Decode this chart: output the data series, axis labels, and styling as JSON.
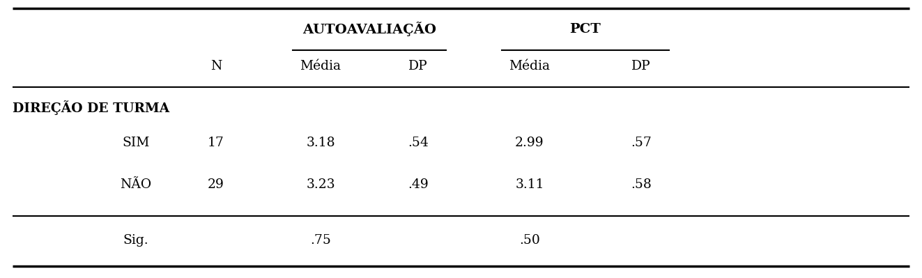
{
  "group_label": "DIREÇÃO DE TURMA",
  "header_auto": "AUTOAVALIAÇÃO",
  "header_pct": "PCT",
  "subheaders": [
    "N",
    "Média",
    "DP",
    "Média",
    "DP"
  ],
  "rows": [
    [
      "SIM",
      "17",
      "3.18",
      ".54",
      "2.99",
      ".57"
    ],
    [
      "NÃO",
      "29",
      "3.23",
      ".49",
      "3.11",
      ".58"
    ]
  ],
  "sig_row": [
    "Sig.",
    ".75",
    ".50"
  ],
  "background_color": "#ffffff",
  "text_color": "#000000",
  "font_size": 13.5
}
